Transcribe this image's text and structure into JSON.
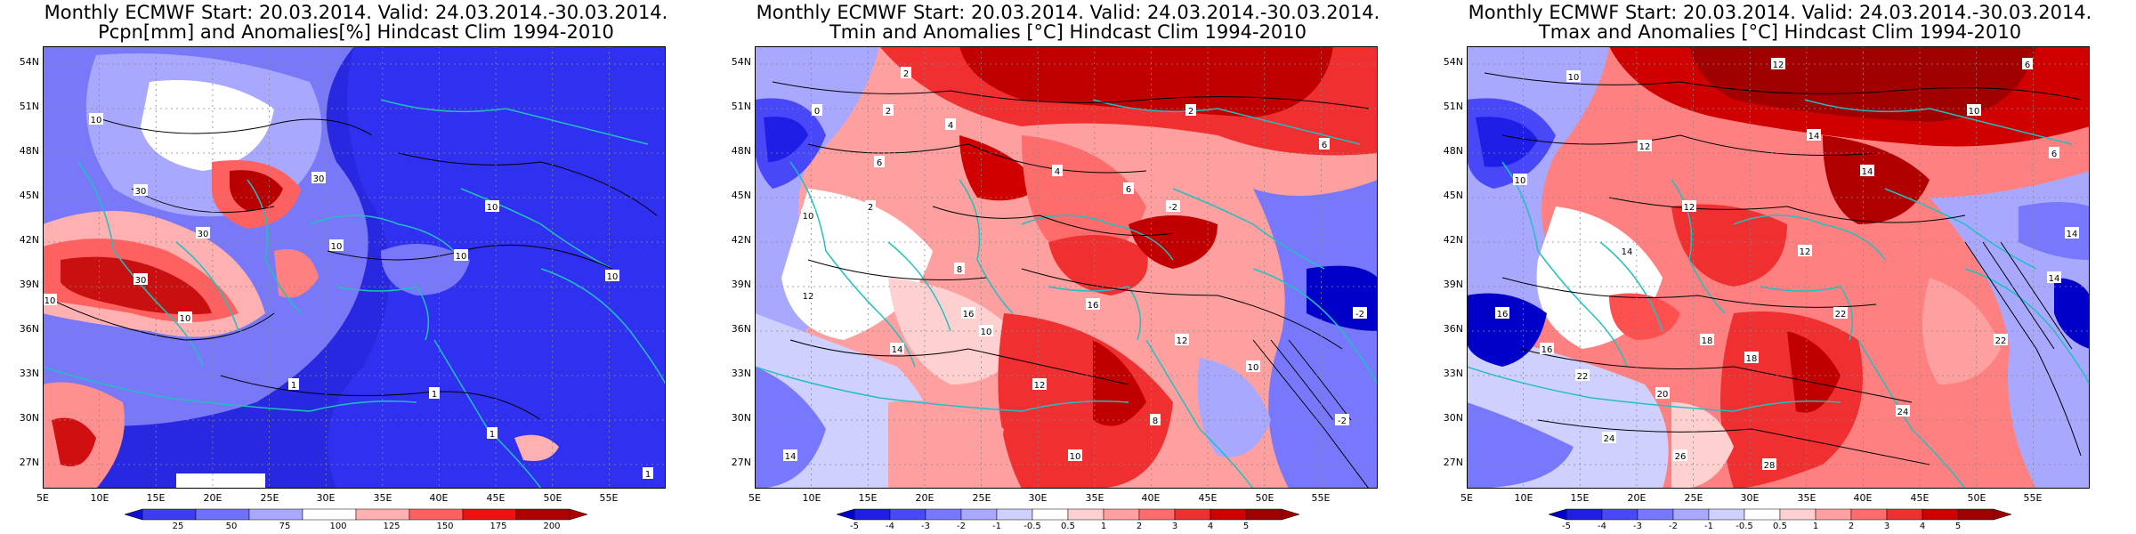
{
  "panels": [
    {
      "title_line1": "Monthly ECMWF Start: 20.03.2014. Valid: 24.03.2014.-30.03.2014.",
      "title_line2": "Pcpn[mm] and Anomalies[%] Hindcast Clim 1994-2010",
      "colorbar_ticks": [
        "25",
        "50",
        "75",
        "100",
        "125",
        "150",
        "175",
        "200"
      ],
      "colorbar_colors": [
        "#1010d0",
        "#3c3cf0",
        "#7070f8",
        "#a8a8ff",
        "#ffffff",
        "#ffb0b0",
        "#ff6060",
        "#f01010",
        "#b00000"
      ],
      "contour_labels": [
        "10",
        "30",
        "30",
        "30",
        "10",
        "10",
        "10",
        "30",
        "1",
        "1",
        "1",
        "10",
        "10",
        "10",
        "1"
      ]
    },
    {
      "title_line1": "Monthly ECMWF Start: 20.03.2014. Valid: 24.03.2014.-30.03.2014.",
      "title_line2": "Tmin and Anomalies [°C] Hindcast Clim 1994-2010",
      "colorbar_ticks": [
        "-5",
        "-4",
        "-3",
        "-2",
        "-1",
        "-0.5",
        "0.5",
        "1",
        "2",
        "3",
        "4",
        "5"
      ],
      "colorbar_colors": [
        "#0000c8",
        "#1e1ee6",
        "#4848f8",
        "#7878ff",
        "#a8a8ff",
        "#d0d0ff",
        "#ffffff",
        "#ffd0d0",
        "#ffa0a0",
        "#ff6c6c",
        "#f03030",
        "#d00000",
        "#a00000"
      ],
      "contour_labels": [
        "2",
        "0",
        "2",
        "4",
        "2",
        "6",
        "2",
        "4",
        "6",
        "10",
        "12",
        "8",
        "14",
        "10",
        "12",
        "16",
        "-2",
        "-2",
        "8",
        "10",
        "6",
        "14",
        "16",
        "12",
        "10",
        "-2"
      ]
    },
    {
      "title_line1": "Monthly ECMWF Start: 20.03.2014. Valid: 24.03.2014.-30.03.2014.",
      "title_line2": "Tmax and Anomalies [°C] Hindcast Clim 1994-2010",
      "colorbar_ticks": [
        "-5",
        "-4",
        "-3",
        "-2",
        "-1",
        "-0.5",
        "0.5",
        "1",
        "2",
        "3",
        "4",
        "5"
      ],
      "colorbar_colors": [
        "#0000c8",
        "#1e1ee6",
        "#4848f8",
        "#7878ff",
        "#a8a8ff",
        "#d0d0ff",
        "#ffffff",
        "#ffd0d0",
        "#ffa0a0",
        "#ff6c6c",
        "#f03030",
        "#d00000",
        "#a00000"
      ],
      "contour_labels": [
        "10",
        "12",
        "6",
        "14",
        "10",
        "12",
        "14",
        "10",
        "12",
        "12",
        "14",
        "16",
        "18",
        "22",
        "24",
        "16",
        "22",
        "20",
        "24",
        "26",
        "28",
        "18",
        "22",
        "14",
        "6",
        "14"
      ]
    }
  ],
  "map": {
    "lat_labels": [
      "54N",
      "51N",
      "48N",
      "45N",
      "42N",
      "39N",
      "36N",
      "33N",
      "30N",
      "27N"
    ],
    "lon_labels": [
      "5E",
      "10E",
      "15E",
      "20E",
      "25E",
      "30E",
      "35E",
      "40E",
      "45E",
      "50E",
      "55E"
    ],
    "grid": "dotted",
    "coastline_color": "#20c0c0"
  }
}
